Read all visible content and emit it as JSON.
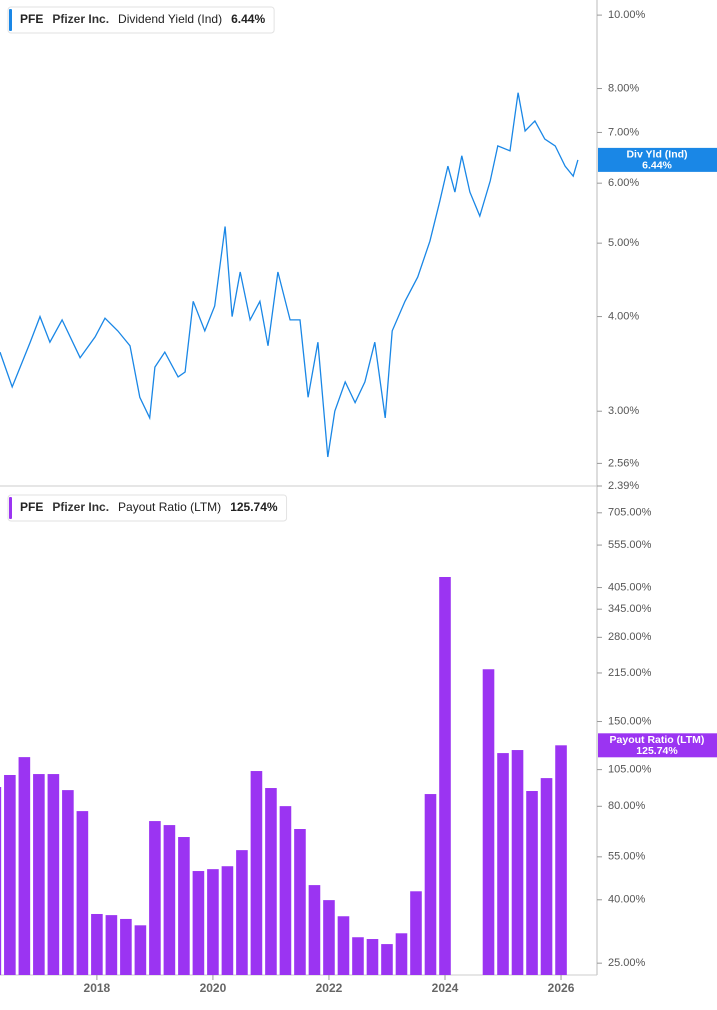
{
  "chart_data": [
    {
      "type": "line",
      "log_scale": true,
      "color": "#1a87e6",
      "legend": {
        "ticker": "PFE",
        "company": "Pfizer Inc.",
        "metric": "Dividend Yield (Ind)",
        "value": "6.44%"
      },
      "badge": {
        "name": "Div Yld (Ind)",
        "value": "6.44%"
      },
      "xlim": [
        2016.33,
        2026.62
      ],
      "ylim": [
        2.39,
        10.47
      ],
      "yticks": [
        {
          "value": 10,
          "label": "10.00%"
        },
        {
          "value": 8,
          "label": "8.00%"
        },
        {
          "value": 7,
          "label": "7.00%"
        },
        {
          "value": 6,
          "label": "6.00%"
        },
        {
          "value": 5,
          "label": "5.00%"
        },
        {
          "value": 4,
          "label": "4.00%"
        },
        {
          "value": 3,
          "label": "3.00%"
        },
        {
          "value": 2.56,
          "label": "2.56%"
        },
        {
          "value": 2.39,
          "label": "2.39%"
        }
      ],
      "x": [
        2016.33,
        2016.54,
        2016.85,
        2017.02,
        2017.19,
        2017.4,
        2017.71,
        2017.97,
        2018.14,
        2018.36,
        2018.57,
        2018.74,
        2018.91,
        2019.0,
        2019.17,
        2019.4,
        2019.52,
        2019.66,
        2019.86,
        2020.03,
        2020.21,
        2020.33,
        2020.47,
        2020.64,
        2020.81,
        2020.95,
        2021.12,
        2021.33,
        2021.5,
        2021.64,
        2021.81,
        2021.98,
        2022.1,
        2022.28,
        2022.45,
        2022.62,
        2022.79,
        2022.97,
        2023.09,
        2023.31,
        2023.53,
        2023.74,
        2023.91,
        2024.05,
        2024.17,
        2024.29,
        2024.43,
        2024.6,
        2024.78,
        2024.91,
        2025.12,
        2025.26,
        2025.38,
        2025.55,
        2025.72,
        2025.9,
        2026.07,
        2026.21,
        2026.29
      ],
      "values": [
        3.59,
        3.23,
        3.7,
        4.0,
        3.7,
        3.96,
        3.53,
        3.76,
        3.98,
        3.83,
        3.66,
        3.13,
        2.94,
        3.43,
        3.59,
        3.33,
        3.38,
        4.19,
        3.83,
        4.13,
        5.26,
        4.0,
        4.58,
        3.96,
        4.19,
        3.66,
        4.58,
        3.96,
        3.96,
        3.13,
        3.7,
        2.61,
        3.0,
        3.28,
        3.08,
        3.28,
        3.7,
        2.94,
        3.83,
        4.19,
        4.51,
        5.03,
        5.68,
        6.32,
        5.84,
        6.52,
        5.84,
        5.43,
        6.04,
        6.72,
        6.62,
        7.9,
        7.03,
        7.25,
        6.86,
        6.72,
        6.32,
        6.13,
        6.44
      ]
    },
    {
      "type": "bar",
      "log_scale": true,
      "color": "#9b34f2",
      "legend": {
        "ticker": "PFE",
        "company": "Pfizer Inc.",
        "metric": "Payout Ratio (LTM)",
        "value": "125.74%"
      },
      "badge": {
        "name": "Payout Ratio (LTM)",
        "value": "125.74%"
      },
      "xlim": [
        2016.33,
        2026.62
      ],
      "xticks": [
        2018,
        2020,
        2022,
        2024,
        2026
      ],
      "ylim": [
        22.9,
        860
      ],
      "yticks": [
        {
          "value": 705,
          "label": "705.00%"
        },
        {
          "value": 555,
          "label": "555.00%"
        },
        {
          "value": 405,
          "label": "405.00%"
        },
        {
          "value": 345,
          "label": "345.00%"
        },
        {
          "value": 280,
          "label": "280.00%"
        },
        {
          "value": 215,
          "label": "215.00%"
        },
        {
          "value": 150,
          "label": "150.00%"
        },
        {
          "value": 105,
          "label": "105.00%"
        },
        {
          "value": 80,
          "label": "80.00%"
        },
        {
          "value": 55,
          "label": "55.00%"
        },
        {
          "value": 40,
          "label": "40.00%"
        },
        {
          "value": 25,
          "label": "25.00%"
        }
      ],
      "x": [
        2016.25,
        2016.5,
        2016.75,
        2017.0,
        2017.25,
        2017.5,
        2017.75,
        2018.0,
        2018.25,
        2018.5,
        2018.75,
        2019.0,
        2019.25,
        2019.5,
        2019.75,
        2020.0,
        2020.25,
        2020.5,
        2020.75,
        2021.0,
        2021.25,
        2021.5,
        2021.75,
        2022.0,
        2022.25,
        2022.5,
        2022.75,
        2023.0,
        2023.25,
        2023.5,
        2023.75,
        2024.0,
        2024.25,
        2024.5,
        2024.75,
        2025.0,
        2025.25,
        2025.5,
        2025.75,
        2026.0
      ],
      "values": [
        92.3,
        100.9,
        115.2,
        101.6,
        101.6,
        90.2,
        77.2,
        36.0,
        35.7,
        34.7,
        33.1,
        71.7,
        69.6,
        63.7,
        49.5,
        50.2,
        51.3,
        57.8,
        103.9,
        91.6,
        80.1,
        67.6,
        44.6,
        39.9,
        35.4,
        30.3,
        29.9,
        28.8,
        31.2,
        42.6,
        87.6,
        438,
        null,
        null,
        221,
        118.7,
        121.4,
        89.6,
        98.6,
        125.74
      ]
    }
  ]
}
